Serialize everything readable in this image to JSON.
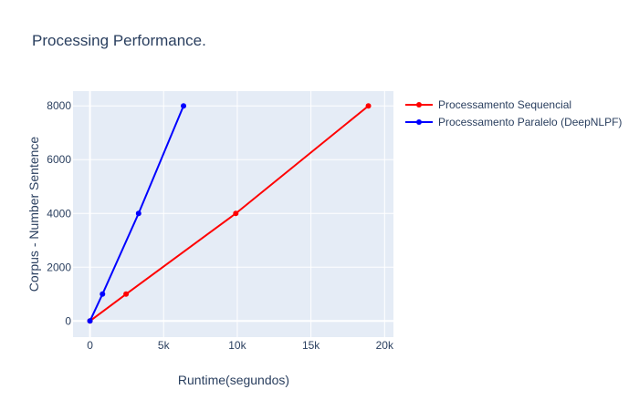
{
  "chart_data": {
    "type": "line",
    "title": "Processing Performance.",
    "xlabel": "Runtime(segundos)",
    "ylabel": "Corpus - Number Sentence",
    "xlim": [
      -1150,
      20600
    ],
    "ylim": [
      -600,
      8550
    ],
    "xticks": [
      {
        "value": 0,
        "label": "0"
      },
      {
        "value": 5000,
        "label": "5k"
      },
      {
        "value": 10000,
        "label": "10k"
      },
      {
        "value": 15000,
        "label": "15k"
      },
      {
        "value": 20000,
        "label": "20k"
      }
    ],
    "yticks": [
      {
        "value": 0,
        "label": "0"
      },
      {
        "value": 2000,
        "label": "2000"
      },
      {
        "value": 4000,
        "label": "4000"
      },
      {
        "value": 6000,
        "label": "6000"
      },
      {
        "value": 8000,
        "label": "8000"
      }
    ],
    "grid": true,
    "legend_position": "top-right outside",
    "series": [
      {
        "name": "Processamento Sequencial",
        "color": "#ff0000",
        "x": [
          0,
          2450,
          9900,
          18900
        ],
        "y": [
          0,
          1000,
          4000,
          8000
        ]
      },
      {
        "name": "Processamento Paralelo (DeepNLPF)",
        "color": "#0000ff",
        "x": [
          0,
          850,
          3300,
          6350
        ],
        "y": [
          0,
          1000,
          4000,
          8000
        ]
      }
    ]
  }
}
